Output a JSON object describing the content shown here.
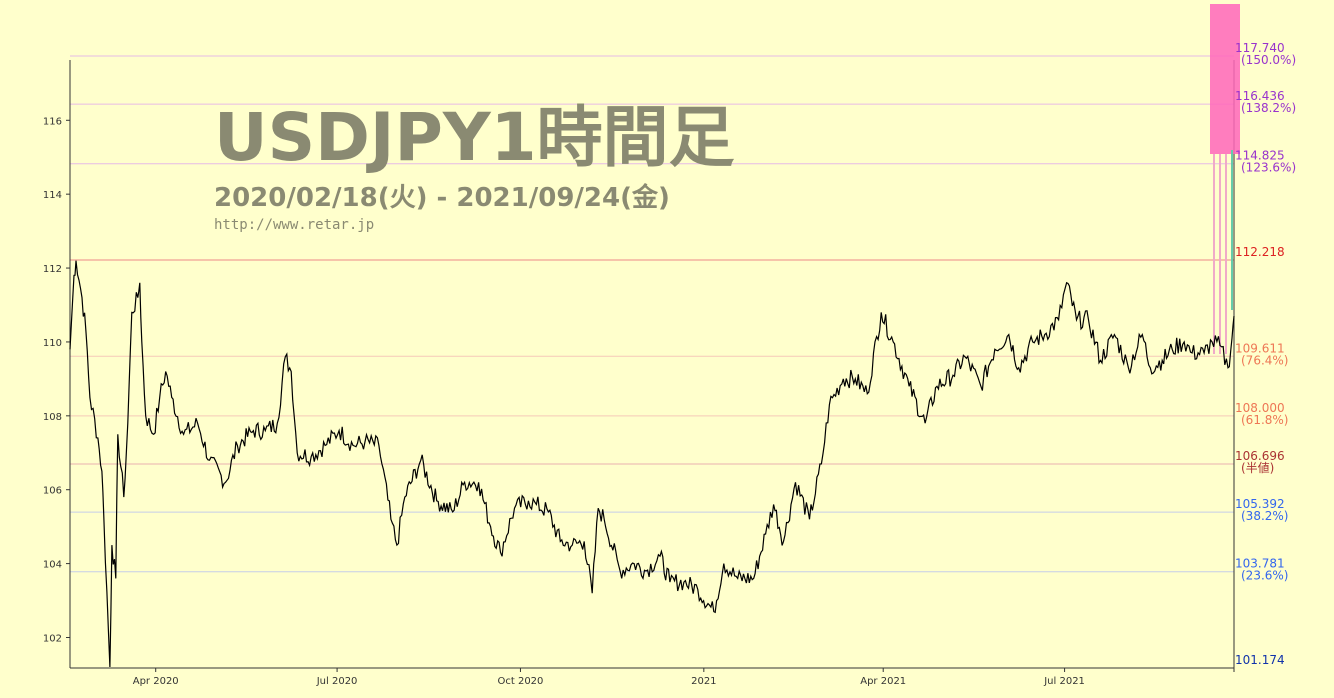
{
  "watermark": {
    "title": "USDJPY1時間足",
    "period": "2020/02/18(火) - 2021/09/24(金)",
    "url": "http://www.retar.jp"
  },
  "colors": {
    "background": "#ffffcc",
    "price_line": "#000000",
    "watermark": "#8a8a72"
  },
  "chart_data": {
    "type": "line",
    "title": "USDJPY1時間足",
    "subtitle": "2020/02/18(火) - 2021/09/24(金)",
    "x_range": [
      "2020-02-18",
      "2021-09-24"
    ],
    "ylim": [
      101.174,
      117.74
    ],
    "y_ticks": [
      102,
      104,
      106,
      108,
      110,
      112,
      114,
      116
    ],
    "x_ticks": [
      {
        "date": "2020-04-01",
        "label": "Apr 2020"
      },
      {
        "date": "2020-07-01",
        "label": "Jul 2020"
      },
      {
        "date": "2020-10-01",
        "label": "Oct 2020"
      },
      {
        "date": "2021-01-01",
        "label": "2021"
      },
      {
        "date": "2021-04-01",
        "label": "Apr 2021"
      },
      {
        "date": "2021-07-01",
        "label": "Jul 2021"
      }
    ],
    "grid": false,
    "series": [
      {
        "points": [
          [
            "2020-02-18",
            109.8
          ],
          [
            "2020-02-20",
            111.8
          ],
          [
            "2020-02-21",
            112.2
          ],
          [
            "2020-02-24",
            111.2
          ],
          [
            "2020-02-26",
            110.3
          ],
          [
            "2020-02-28",
            108.5
          ],
          [
            "2020-03-03",
            107.4
          ],
          [
            "2020-03-05",
            106.5
          ],
          [
            "2020-03-06",
            105.2
          ],
          [
            "2020-03-09",
            101.2
          ],
          [
            "2020-03-10",
            104.5
          ],
          [
            "2020-03-12",
            103.6
          ],
          [
            "2020-03-13",
            107.5
          ],
          [
            "2020-03-16",
            105.8
          ],
          [
            "2020-03-18",
            107.8
          ],
          [
            "2020-03-20",
            110.8
          ],
          [
            "2020-03-23",
            111.2
          ],
          [
            "2020-03-24",
            111.6
          ],
          [
            "2020-03-25",
            110.0
          ],
          [
            "2020-03-27",
            108.0
          ],
          [
            "2020-03-31",
            107.5
          ],
          [
            "2020-04-03",
            108.5
          ],
          [
            "2020-04-06",
            109.2
          ],
          [
            "2020-04-09",
            108.5
          ],
          [
            "2020-04-15",
            107.5
          ],
          [
            "2020-04-22",
            107.8
          ],
          [
            "2020-04-28",
            106.8
          ],
          [
            "2020-05-06",
            106.2
          ],
          [
            "2020-05-12",
            107.2
          ],
          [
            "2020-05-20",
            107.6
          ],
          [
            "2020-05-26",
            107.6
          ],
          [
            "2020-06-01",
            107.8
          ],
          [
            "2020-06-05",
            109.6
          ],
          [
            "2020-06-08",
            109.2
          ],
          [
            "2020-06-11",
            107.0
          ],
          [
            "2020-06-18",
            106.9
          ],
          [
            "2020-06-25",
            107.2
          ],
          [
            "2020-07-02",
            107.6
          ],
          [
            "2020-07-09",
            107.2
          ],
          [
            "2020-07-15",
            107.3
          ],
          [
            "2020-07-22",
            107.2
          ],
          [
            "2020-07-28",
            105.2
          ],
          [
            "2020-07-31",
            104.5
          ],
          [
            "2020-08-04",
            105.8
          ],
          [
            "2020-08-12",
            106.8
          ],
          [
            "2020-08-20",
            105.7
          ],
          [
            "2020-08-28",
            105.4
          ],
          [
            "2020-09-03",
            106.2
          ],
          [
            "2020-09-10",
            106.2
          ],
          [
            "2020-09-16",
            105.0
          ],
          [
            "2020-09-21",
            104.3
          ],
          [
            "2020-09-28",
            105.5
          ],
          [
            "2020-10-05",
            105.7
          ],
          [
            "2020-10-09",
            105.6
          ],
          [
            "2020-10-15",
            105.4
          ],
          [
            "2020-10-21",
            104.6
          ],
          [
            "2020-10-27",
            104.5
          ],
          [
            "2020-11-02",
            104.6
          ],
          [
            "2020-11-06",
            103.2
          ],
          [
            "2020-11-09",
            105.5
          ],
          [
            "2020-11-12",
            105.2
          ],
          [
            "2020-11-20",
            103.8
          ],
          [
            "2020-11-27",
            104.0
          ],
          [
            "2020-12-03",
            103.8
          ],
          [
            "2020-12-10",
            104.2
          ],
          [
            "2020-12-15",
            103.5
          ],
          [
            "2020-12-22",
            103.5
          ],
          [
            "2020-12-29",
            103.3
          ],
          [
            "2021-01-06",
            102.7
          ],
          [
            "2021-01-11",
            104.0
          ],
          [
            "2021-01-18",
            103.6
          ],
          [
            "2021-01-26",
            103.6
          ],
          [
            "2021-02-01",
            104.8
          ],
          [
            "2021-02-05",
            105.6
          ],
          [
            "2021-02-10",
            104.6
          ],
          [
            "2021-02-16",
            106.2
          ],
          [
            "2021-02-23",
            105.2
          ],
          [
            "2021-03-01",
            106.7
          ],
          [
            "2021-03-05",
            108.3
          ],
          [
            "2021-03-12",
            109.0
          ],
          [
            "2021-03-18",
            109.0
          ],
          [
            "2021-03-24",
            108.6
          ],
          [
            "2021-03-31",
            110.8
          ],
          [
            "2021-04-06",
            110.0
          ],
          [
            "2021-04-14",
            108.8
          ],
          [
            "2021-04-22",
            107.8
          ],
          [
            "2021-04-28",
            108.8
          ],
          [
            "2021-05-06",
            109.1
          ],
          [
            "2021-05-12",
            109.6
          ],
          [
            "2021-05-20",
            108.8
          ],
          [
            "2021-05-27",
            109.8
          ],
          [
            "2021-06-03",
            110.2
          ],
          [
            "2021-06-08",
            109.3
          ],
          [
            "2021-06-15",
            110.0
          ],
          [
            "2021-06-21",
            110.2
          ],
          [
            "2021-06-28",
            110.6
          ],
          [
            "2021-07-02",
            111.6
          ],
          [
            "2021-07-07",
            110.6
          ],
          [
            "2021-07-13",
            110.6
          ],
          [
            "2021-07-19",
            109.5
          ],
          [
            "2021-07-26",
            110.2
          ],
          [
            "2021-08-02",
            109.3
          ],
          [
            "2021-08-09",
            110.2
          ],
          [
            "2021-08-13",
            109.3
          ],
          [
            "2021-08-19",
            109.5
          ],
          [
            "2021-08-24",
            109.8
          ],
          [
            "2021-08-30",
            110.0
          ],
          [
            "2021-09-03",
            109.7
          ],
          [
            "2021-09-09",
            109.7
          ],
          [
            "2021-09-13",
            110.0
          ],
          [
            "2021-09-17",
            109.9
          ],
          [
            "2021-09-21",
            109.3
          ],
          [
            "2021-09-23",
            110.1
          ],
          [
            "2021-09-24",
            110.7
          ]
        ]
      }
    ],
    "levels": [
      {
        "value": 117.74,
        "label": "117.740",
        "pct": "(150.0%)",
        "color": "#9933cc",
        "line": "#e6bbe6"
      },
      {
        "value": 116.436,
        "label": "116.436",
        "pct": "(138.2%)",
        "color": "#9933cc",
        "line": "#e6bbe6"
      },
      {
        "value": 114.825,
        "label": "114.825",
        "pct": "(123.6%)",
        "color": "#9933cc",
        "line": "#e6bbe6"
      },
      {
        "value": 112.218,
        "label": "112.218",
        "pct": "",
        "color": "#dd2222",
        "line": "#ee8888"
      },
      {
        "value": 109.611,
        "label": "109.611",
        "pct": "(76.4%)",
        "color": "#ee7755",
        "line": "#f5c9b8"
      },
      {
        "value": 108.0,
        "label": "108.000",
        "pct": "(61.8%)",
        "color": "#ee7755",
        "line": "#f5c9b8"
      },
      {
        "value": 106.696,
        "label": "106.696",
        "pct": "(半値)",
        "color": "#aa3333",
        "line": "#e8b0b0"
      },
      {
        "value": 105.392,
        "label": "105.392",
        "pct": "(38.2%)",
        "color": "#3366ee",
        "line": "#c5cde8"
      },
      {
        "value": 103.781,
        "label": "103.781",
        "pct": "(23.6%)",
        "color": "#3366ee",
        "line": "#c5cde8"
      },
      {
        "value": 101.174,
        "label": "101.174",
        "pct": "",
        "color": "#1133aa",
        "line": "#7788bb"
      }
    ]
  }
}
